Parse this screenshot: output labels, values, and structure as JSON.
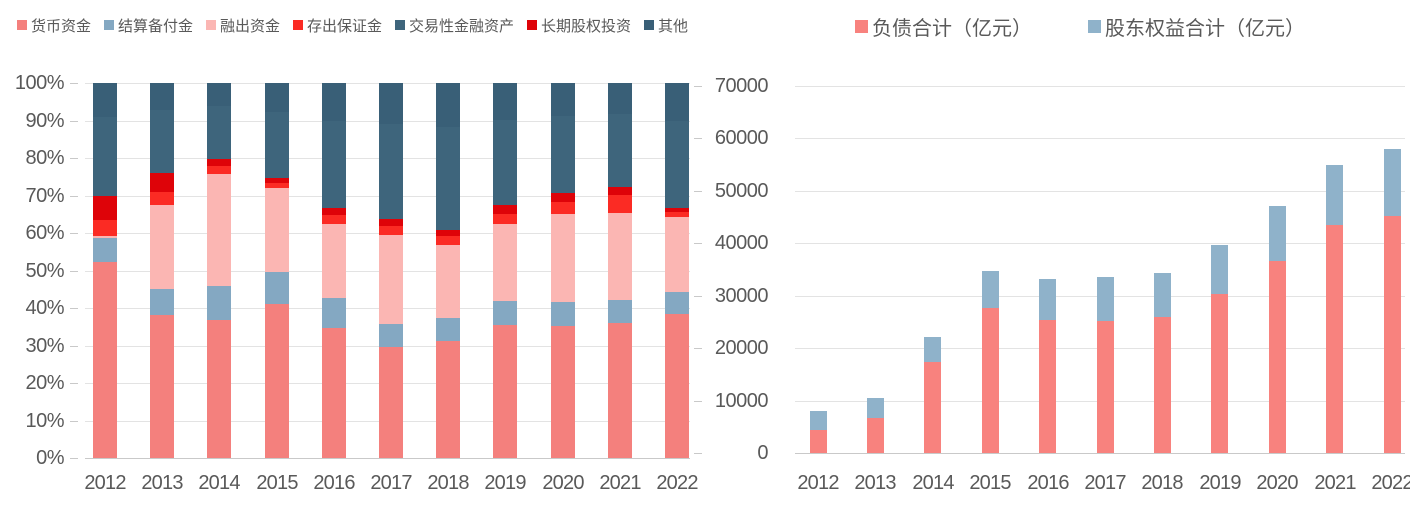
{
  "page": {
    "background": "#ffffff",
    "text_color": "#595959",
    "gridline_color": "#e3e3e3",
    "axis_line_color": "#c9c9c9"
  },
  "chart_data": [
    {
      "type": "bar",
      "variant": "stacked-100-percent",
      "title": "",
      "xlabel": "",
      "ylabel": "",
      "legend_position": "top",
      "grid": true,
      "ylim": [
        0,
        100
      ],
      "ytick_step": 10,
      "ytick_labels": [
        "0%",
        "10%",
        "20%",
        "30%",
        "40%",
        "50%",
        "60%",
        "70%",
        "80%",
        "90%",
        "100%"
      ],
      "categories": [
        "2012",
        "2013",
        "2014",
        "2015",
        "2016",
        "2017",
        "2018",
        "2019",
        "2020",
        "2021",
        "2022"
      ],
      "series": [
        {
          "name": "货币资金",
          "color": "#F4807D",
          "values": [
            52.3,
            38.2,
            36.7,
            41.1,
            34.7,
            29.5,
            31.1,
            35.6,
            35.1,
            36.0,
            38.4
          ]
        },
        {
          "name": "结算备付金",
          "color": "#84A8C2",
          "values": [
            6.4,
            6.8,
            9.3,
            8.5,
            8.1,
            6.2,
            6.2,
            6.2,
            6.4,
            6.2,
            6.0
          ]
        },
        {
          "name": "融出资金",
          "color": "#FBB6B3",
          "values": [
            0.5,
            22.6,
            29.7,
            22.4,
            19.6,
            23.9,
            19.6,
            20.7,
            23.7,
            23.2,
            19.9
          ]
        },
        {
          "name": "存出保证金",
          "color": "#FB2B24",
          "values": [
            4.2,
            3.3,
            2.3,
            1.3,
            2.5,
            2.2,
            2.2,
            2.5,
            3.1,
            4.7,
            1.4
          ]
        },
        {
          "name": "交易性金融资产",
          "color": "#3E657C",
          "values": [
            21.0,
            16.8,
            14.1,
            17.7,
            23.3,
            25.3,
            27.4,
            22.7,
            20.6,
            19.4,
            23.4
          ]
        },
        {
          "name": "长期股权投资",
          "color": "#DE0309",
          "values": [
            6.6,
            5.1,
            1.8,
            1.4,
            1.8,
            2.0,
            1.8,
            2.5,
            2.3,
            2.2,
            0.9
          ]
        },
        {
          "name": "其他",
          "color": "#395F77",
          "values": [
            9.0,
            7.2,
            6.1,
            7.6,
            10.0,
            10.9,
            11.7,
            9.8,
            8.8,
            8.3,
            10.0
          ]
        }
      ],
      "stack_order_bottom_to_top": [
        "货币资金",
        "结算备付金",
        "融出资金",
        "存出保证金",
        "长期股权投资",
        "交易性金融资产",
        "其他"
      ]
    },
    {
      "type": "bar",
      "variant": "stacked",
      "title": "",
      "xlabel": "",
      "ylabel": "",
      "legend_position": "top",
      "grid": true,
      "ylim": [
        0,
        70000
      ],
      "ytick_step": 10000,
      "ytick_labels": [
        "0",
        "10000",
        "20000",
        "30000",
        "40000",
        "50000",
        "60000",
        "70000"
      ],
      "categories": [
        "2012",
        "2013",
        "2014",
        "2015",
        "2016",
        "2017",
        "2018",
        "2019",
        "2020",
        "2021",
        "2022"
      ],
      "series": [
        {
          "name": "负债合计（亿元）",
          "color": "#F8827E",
          "values": [
            4400,
            6600,
            17300,
            27600,
            25400,
            25200,
            25900,
            30300,
            36700,
            43500,
            45200
          ]
        },
        {
          "name": "股东权益合计（亿元）",
          "color": "#8FB2CA",
          "values": [
            3600,
            3800,
            4800,
            7100,
            7700,
            8400,
            8500,
            9400,
            10500,
            11400,
            12700
          ]
        }
      ],
      "stack_order_bottom_to_top": [
        "负债合计（亿元）",
        "股东权益合计（亿元）"
      ]
    }
  ]
}
